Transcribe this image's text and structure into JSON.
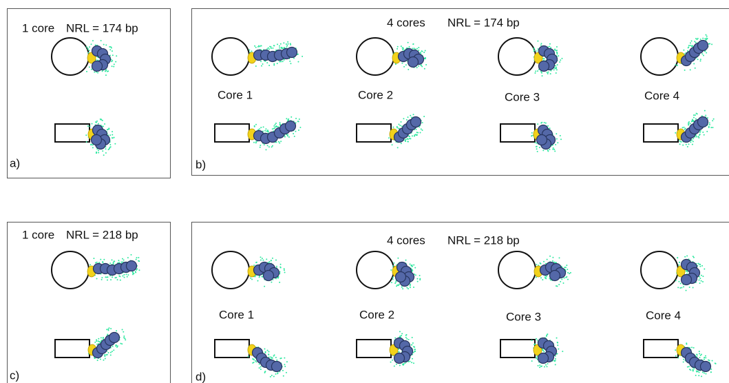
{
  "panels": [
    {
      "cores": "1 core",
      "nrl": "NRL = 174 bp",
      "label": "a)"
    },
    {
      "cores": "4 cores",
      "nrl": "NRL = 174 bp",
      "label": "b)",
      "core_labels": [
        "Core 1",
        "Core 2",
        "Core 3",
        "Core 4"
      ]
    },
    {
      "cores": "1 core",
      "nrl": "NRL = 218 bp",
      "label": "c)"
    },
    {
      "cores": "4 cores",
      "nrl": "NRL = 218 bp",
      "label": "d)",
      "core_labels": [
        "Core 1",
        "Core 2",
        "Core 3",
        "Core 4"
      ]
    }
  ]
}
